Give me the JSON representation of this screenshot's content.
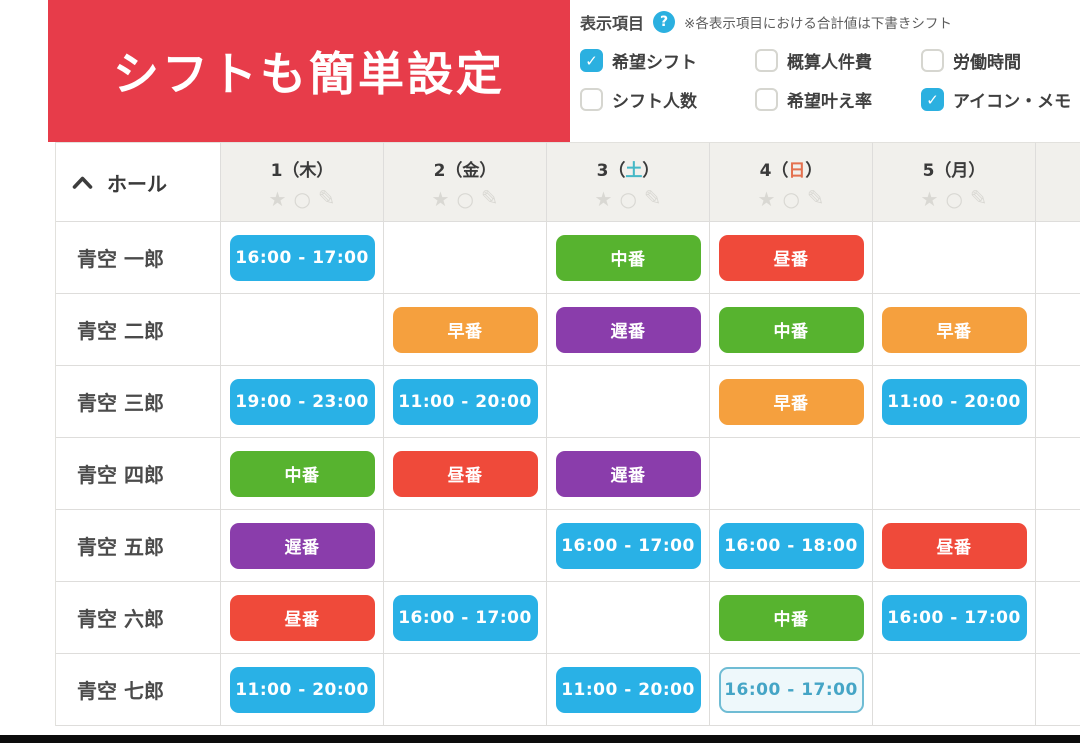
{
  "banner": {
    "text": "シフトも簡単設定",
    "bg": "#e73c4a"
  },
  "options": {
    "title": "表示項目",
    "note": "※各表示項目における合計値は下書きシフト",
    "accent": "#2bb0e0",
    "checkboxes": [
      {
        "label": "希望シフト",
        "checked": true
      },
      {
        "label": "概算人件費",
        "checked": false
      },
      {
        "label": "労働時間",
        "checked": false
      },
      {
        "label": "シフト人数",
        "checked": false
      },
      {
        "label": "希望叶え率",
        "checked": false
      },
      {
        "label": "アイコン・メモ",
        "checked": true
      }
    ]
  },
  "glyphs": {
    "help": "?",
    "star": "★",
    "circle": "○",
    "pencil": "✎",
    "check": "✓"
  },
  "colors": {
    "badge_time": "#29b1e6",
    "badge_early": "#f5a03e",
    "badge_mid": "#57b32f",
    "badge_day": "#ef4a3a",
    "badge_late": "#8a3dab",
    "outline_bg": "#eef8fb",
    "outline_border": "#6fbcd4",
    "outline_text": "#45a5c6",
    "saturday": "#45b8c6",
    "sunday": "#e4714f",
    "weekday": "#3a3a3a"
  },
  "schedule": {
    "group": {
      "label": "ホール",
      "collapse_icon": "chevron-up"
    },
    "header_icons": [
      "star",
      "circle",
      "pencil"
    ],
    "days": [
      {
        "num": "1",
        "dow": "木",
        "dow_color": "#3a3a3a"
      },
      {
        "num": "2",
        "dow": "金",
        "dow_color": "#3a3a3a"
      },
      {
        "num": "3",
        "dow": "土",
        "dow_color": "#45b8c6"
      },
      {
        "num": "4",
        "dow": "日",
        "dow_color": "#e4714f"
      },
      {
        "num": "5",
        "dow": "月",
        "dow_color": "#3a3a3a"
      },
      {
        "num": "",
        "dow": "",
        "dow_color": ""
      }
    ],
    "rows": [
      {
        "name": "青空 一郎",
        "cells": [
          {
            "type": "time",
            "label": "16:00 - 17:00"
          },
          null,
          {
            "type": "mid",
            "label": "中番"
          },
          {
            "type": "day",
            "label": "昼番"
          },
          null
        ]
      },
      {
        "name": "青空 二郎",
        "cells": [
          null,
          {
            "type": "early",
            "label": "早番"
          },
          {
            "type": "late",
            "label": "遅番"
          },
          {
            "type": "mid",
            "label": "中番"
          },
          {
            "type": "early",
            "label": "早番"
          }
        ]
      },
      {
        "name": "青空 三郎",
        "cells": [
          {
            "type": "time",
            "label": "19:00 - 23:00"
          },
          {
            "type": "time",
            "label": "11:00 - 20:00"
          },
          null,
          {
            "type": "early",
            "label": "早番"
          },
          {
            "type": "time",
            "label": "11:00 - 20:00"
          }
        ]
      },
      {
        "name": "青空 四郎",
        "cells": [
          {
            "type": "mid",
            "label": "中番"
          },
          {
            "type": "day",
            "label": "昼番"
          },
          {
            "type": "late",
            "label": "遅番"
          },
          null,
          null
        ]
      },
      {
        "name": "青空 五郎",
        "cells": [
          {
            "type": "late",
            "label": "遅番"
          },
          null,
          {
            "type": "time",
            "label": "16:00 - 17:00"
          },
          {
            "type": "time",
            "label": "16:00 - 18:00"
          },
          {
            "type": "day",
            "label": "昼番"
          }
        ]
      },
      {
        "name": "青空 六郎",
        "cells": [
          {
            "type": "day",
            "label": "昼番"
          },
          {
            "type": "time",
            "label": "16:00 - 17:00"
          },
          null,
          {
            "type": "mid",
            "label": "中番"
          },
          {
            "type": "time",
            "label": "16:00 - 17:00"
          }
        ]
      },
      {
        "name": "青空 七郎",
        "cells": [
          {
            "type": "time",
            "label": "11:00 - 20:00"
          },
          null,
          {
            "type": "time",
            "label": "11:00 - 20:00"
          },
          {
            "type": "time_outline",
            "label": "16:00 - 17:00"
          },
          null
        ]
      }
    ]
  }
}
